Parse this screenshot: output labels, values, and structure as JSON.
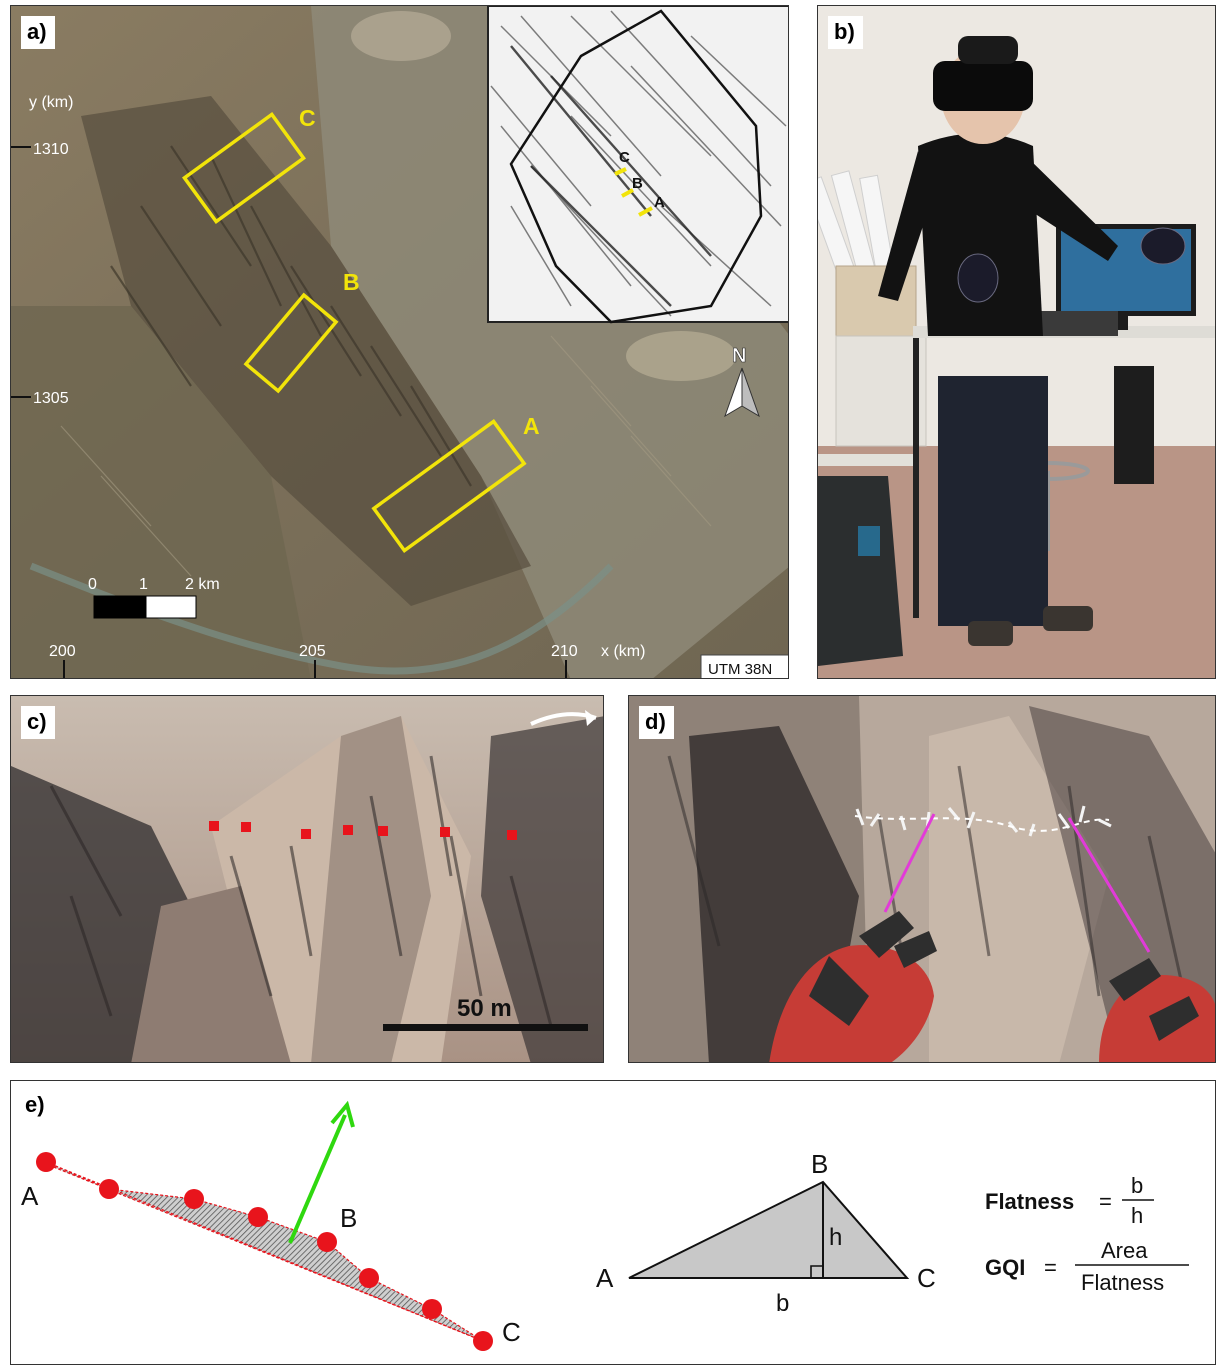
{
  "panels": {
    "a": {
      "label": "a)",
      "y_axis_title": "y (km)",
      "y_ticks": [
        "1310",
        "1305"
      ],
      "x_ticks": [
        "200",
        "205",
        "210"
      ],
      "x_axis_title": "x (km)",
      "areas": [
        "C",
        "B",
        "A"
      ],
      "inset_areas": [
        "C",
        "B",
        "A"
      ],
      "north": "N",
      "scale_labels": [
        "0",
        "1",
        "2 km"
      ],
      "crs": "UTM 38N"
    },
    "b": {
      "label": "b)"
    },
    "c": {
      "label": "c)",
      "scale": "50 m"
    },
    "d": {
      "label": "d)"
    },
    "e": {
      "label": "e)",
      "profile_points": [
        "A",
        "B",
        "C"
      ],
      "triangle_points": [
        "A",
        "B",
        "C"
      ],
      "triangle_dims": [
        "h",
        "b"
      ],
      "flatness_label": "Flatness",
      "flatness_num": "b",
      "flatness_den": "h",
      "gqi_label": "GQI",
      "gqi_num": "Area",
      "gqi_den": "Flatness",
      "eq": "="
    }
  },
  "colors": {
    "highlight": "#f2e40a",
    "red_point": "#e8141c",
    "normal_arrow": "#2fd80f",
    "vr_line": "#e23bd8"
  }
}
